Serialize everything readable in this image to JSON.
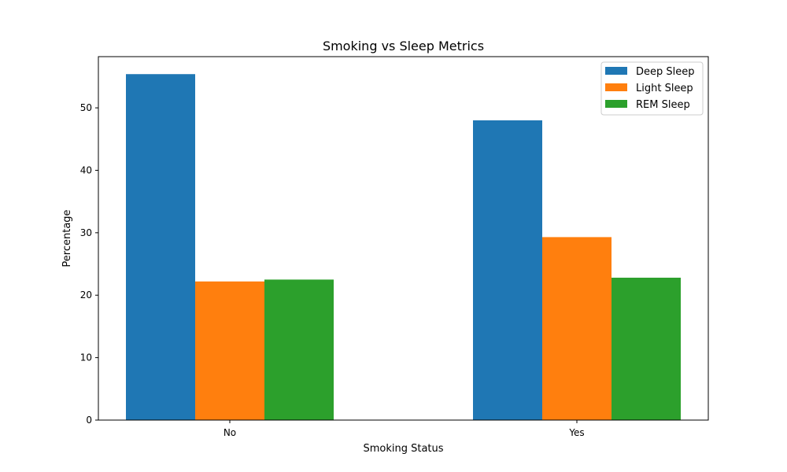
{
  "chart_data": {
    "type": "bar",
    "title": "Smoking vs Sleep Metrics",
    "xlabel": "Smoking Status",
    "ylabel": "Percentage",
    "categories": [
      "No",
      "Yes"
    ],
    "series": [
      {
        "name": "Deep Sleep",
        "values": [
          55.4,
          48.0
        ],
        "color": "#1f77b4"
      },
      {
        "name": "Light Sleep",
        "values": [
          22.2,
          29.3
        ],
        "color": "#ff7f0e"
      },
      {
        "name": "REM Sleep",
        "values": [
          22.5,
          22.8
        ],
        "color": "#2ca02c"
      }
    ],
    "ylim": [
      0,
      58.2
    ],
    "yticks": [
      0,
      10,
      20,
      30,
      40,
      50
    ],
    "grid": false,
    "legend_position": "top-right"
  }
}
